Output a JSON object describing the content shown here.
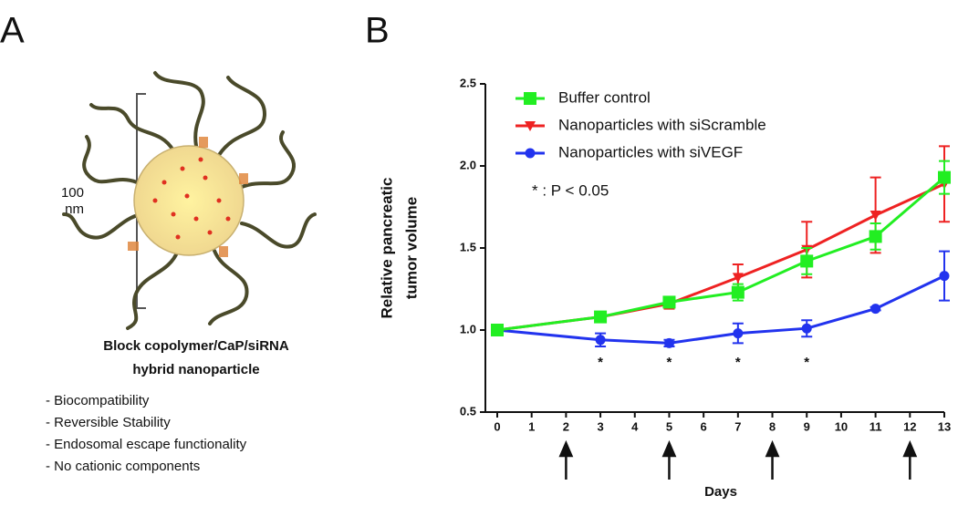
{
  "panel_a": {
    "label": "A",
    "scale_label": [
      "100",
      "nm"
    ],
    "caption": [
      "Block copolymer/CaP/siRNA",
      "hybrid nanoparticle"
    ],
    "features": [
      "- Biocompatibility",
      "- Reversible Stability",
      "- Endosomal escape functionality",
      "- No cationic components"
    ]
  },
  "chart_data": {
    "type": "line",
    "panel_label": "B",
    "ylabel": [
      "Relative pancreatic",
      "tumor volume"
    ],
    "xlabel": "Days",
    "x": [
      0,
      3,
      5,
      7,
      9,
      11,
      13
    ],
    "series": [
      {
        "name": "Buffer control",
        "color": "#22ee22",
        "marker": "square",
        "values": [
          1.0,
          1.08,
          1.17,
          1.23,
          1.42,
          1.57,
          1.93
        ],
        "errors": [
          0,
          0.02,
          0.03,
          0.05,
          0.08,
          0.08,
          0.1
        ]
      },
      {
        "name": "Nanoparticles with siScramble",
        "color": "#ee2222",
        "marker": "triangle-down",
        "values": [
          1.0,
          1.08,
          1.16,
          1.32,
          1.49,
          1.7,
          1.89
        ],
        "errors": [
          0,
          0.02,
          0.03,
          0.08,
          0.17,
          0.23,
          0.23
        ]
      },
      {
        "name": "Nanoparticles with siVEGF",
        "color": "#2233ee",
        "marker": "circle",
        "values": [
          1.0,
          0.94,
          0.92,
          0.98,
          1.01,
          1.13,
          1.33
        ],
        "errors": [
          0,
          0.04,
          0.02,
          0.06,
          0.05,
          0.01,
          0.15
        ]
      }
    ],
    "xlim": [
      0,
      13
    ],
    "xticks": [
      0,
      1,
      2,
      3,
      4,
      5,
      6,
      7,
      8,
      9,
      10,
      11,
      12,
      13
    ],
    "ylim": [
      0.5,
      2.5
    ],
    "yticks": [
      0.5,
      {
        "value": 1,
        "label": "1.0"
      },
      1.5,
      {
        "value": 2,
        "label": "2.0"
      },
      2.5
    ],
    "significance_marker": "*",
    "significance_days": [
      3,
      5,
      7,
      9
    ],
    "significance_note": "* : P < 0.05",
    "injection_days": [
      2,
      5,
      8,
      12
    ]
  }
}
